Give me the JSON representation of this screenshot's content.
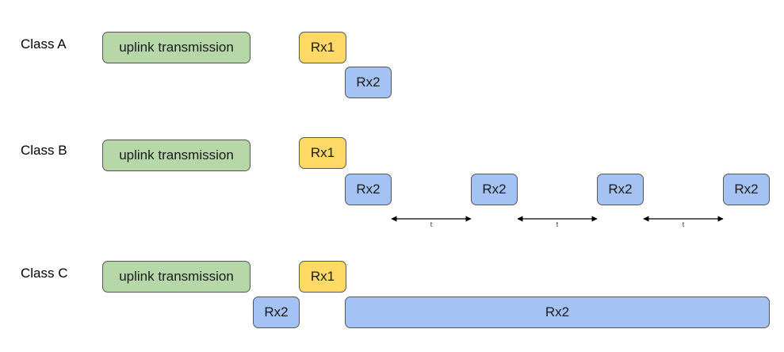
{
  "classes": [
    {
      "label": "Class A",
      "uplink": "uplink transmission",
      "rx1": "Rx1",
      "rx2": [
        "Rx2"
      ]
    },
    {
      "label": "Class B",
      "uplink": "uplink transmission",
      "rx1": "Rx1",
      "rx2": [
        "Rx2",
        "Rx2",
        "Rx2",
        "Rx2"
      ],
      "interval_label": "t"
    },
    {
      "label": "Class C",
      "uplink": "uplink transmission",
      "rx1": "Rx1",
      "rx2_before": "Rx2",
      "rx2_continuous": "Rx2"
    }
  ],
  "colors": {
    "uplink": "#b6d7a8",
    "rx1": "#ffd966",
    "rx2": "#a4c2f4",
    "border": "#555555"
  }
}
